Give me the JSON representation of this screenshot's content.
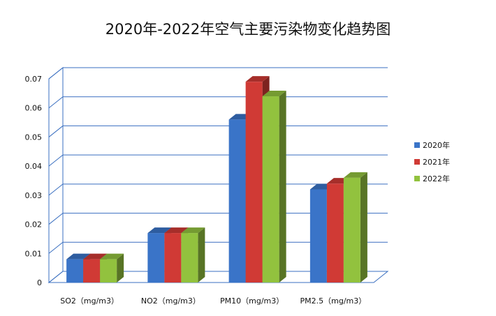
{
  "chart_data": {
    "type": "bar",
    "title": "2020年-2022年空气主要污染物变化趋势图",
    "xlabel": "",
    "ylabel": "",
    "categories": [
      "SO2（mg/m3）",
      "NO2（mg/m3）",
      "PM10（mg/m3）",
      "PM2.5（mg/m3）"
    ],
    "series": [
      {
        "name": "2020年",
        "color": "#3a74c8",
        "values": [
          0.008,
          0.017,
          0.056,
          0.032
        ]
      },
      {
        "name": "2021年",
        "color": "#d03a35",
        "values": [
          0.008,
          0.017,
          0.069,
          0.034
        ]
      },
      {
        "name": "2022年",
        "color": "#92c23e",
        "values": [
          0.008,
          0.017,
          0.064,
          0.036
        ]
      }
    ],
    "yticks": [
      "0",
      "0.01",
      "0.02",
      "0.03",
      "0.04",
      "0.05",
      "0.06",
      "0.07"
    ],
    "ylim": [
      0,
      0.07
    ],
    "grid": true,
    "legend_position": "right",
    "three_d": true
  }
}
